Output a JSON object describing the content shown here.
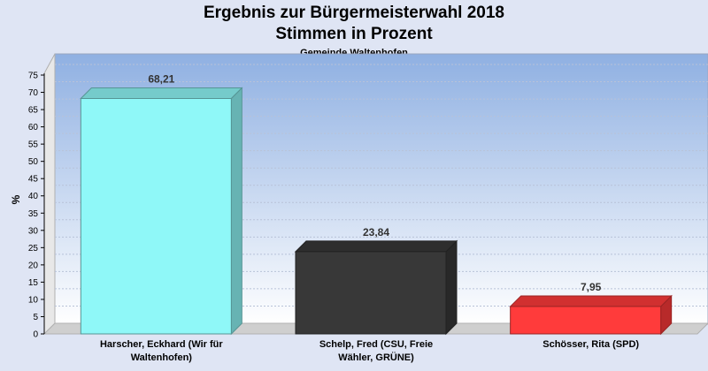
{
  "chart_data": {
    "type": "bar",
    "title": "Ergebnis zur Bürgermeisterwahl 2018",
    "subtitle": "Stimmen in Prozent",
    "subsubtitle": "Gemeinde Waltenhofen",
    "ylabel": "%",
    "xlabel": "",
    "ylim": [
      0,
      75
    ],
    "yticks": [
      0,
      5,
      10,
      15,
      20,
      25,
      30,
      35,
      40,
      45,
      50,
      55,
      60,
      65,
      70,
      75
    ],
    "grid": true,
    "categories": [
      [
        "Harscher, Eckhard (Wir für",
        "Waltenhofen)"
      ],
      [
        "Schelp, Fred (CSU, Freie",
        "Wähler, GRÜNE)"
      ],
      [
        "Schösser, Rita (SPD)"
      ]
    ],
    "values": [
      68.21,
      23.84,
      7.95
    ],
    "value_labels": [
      "68,21",
      "23,84",
      "7,95"
    ],
    "colors": [
      "#8ff8f8",
      "#383838",
      "#ff3b3b"
    ]
  }
}
